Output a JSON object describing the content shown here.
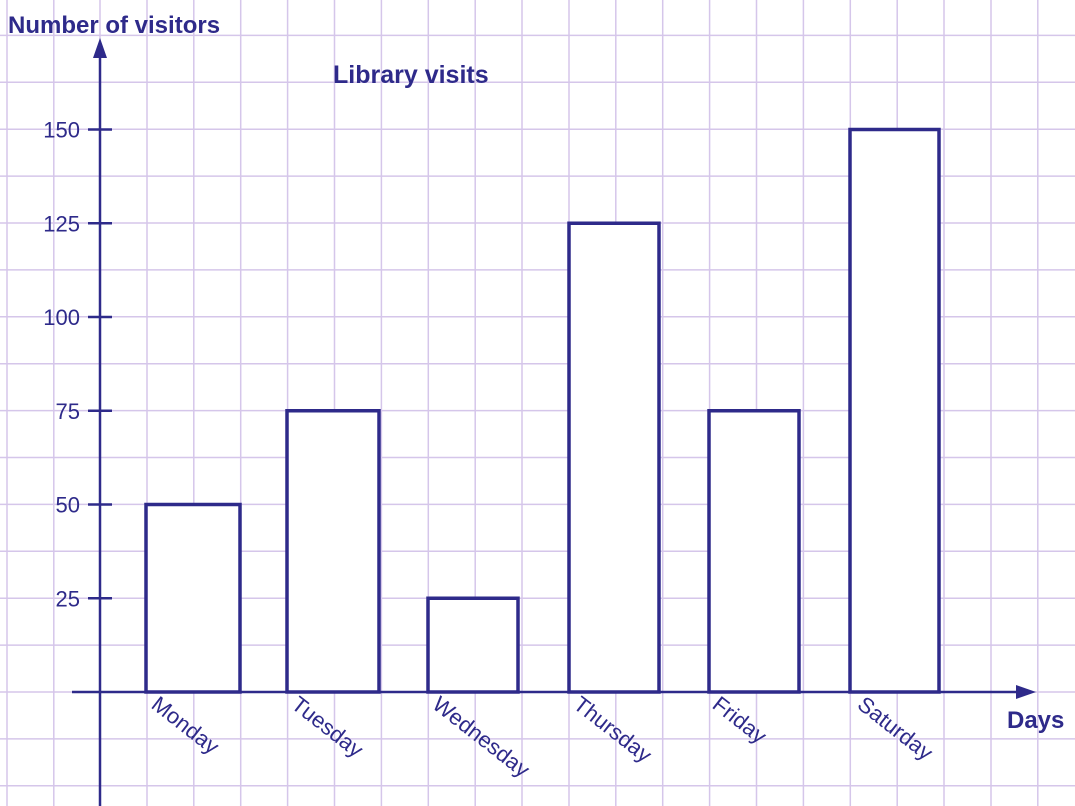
{
  "chart_data": {
    "type": "bar",
    "title": "Library visits",
    "ylabel": "Number of visitors",
    "xlabel": "Days",
    "categories": [
      "Monday",
      "Tuesday",
      "Wednesday",
      "Thursday",
      "Friday",
      "Saturday"
    ],
    "values": [
      50,
      75,
      25,
      125,
      75,
      150
    ],
    "yticks": [
      25,
      50,
      75,
      100,
      125,
      150
    ],
    "ylim": [
      0,
      150
    ],
    "grid": true
  },
  "colors": {
    "ink": "#2e2a8a",
    "grid": "#d5c6ea",
    "background": "#ffffff",
    "bar_fill": "#ffffff"
  }
}
